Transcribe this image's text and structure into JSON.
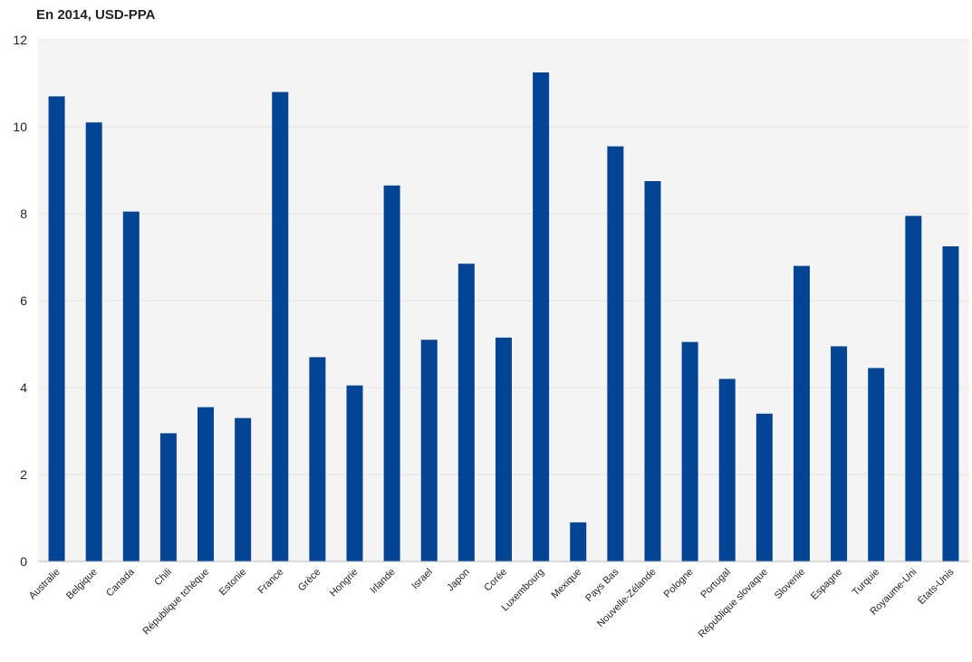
{
  "chart_data": {
    "type": "bar",
    "title": "En 2014, USD-PPA",
    "xlabel": "",
    "ylabel": "",
    "ylim": [
      0,
      12
    ],
    "yticks": [
      0,
      2,
      4,
      6,
      8,
      10,
      12
    ],
    "grid": true,
    "bar_color": "#034594",
    "plot_background": "#f4f4f4",
    "categories": [
      "Australie",
      "Belgique",
      "Canada",
      "Chili",
      "République tchèque",
      "Estonie",
      "France",
      "Grèce",
      "Hongrie",
      "Irlande",
      "Israel",
      "Japon",
      "Corée",
      "Luxembourg",
      "Mexique",
      "Pays Bas",
      "Nouvelle-Zélande",
      "Pologne",
      "Portugal",
      "République slovaque",
      "Slovenie",
      "Espagne",
      "Turquie",
      "Royaume-Uni",
      "États-Unis"
    ],
    "values": [
      10.7,
      10.1,
      8.05,
      2.95,
      3.55,
      3.3,
      10.8,
      4.7,
      4.05,
      8.65,
      5.1,
      6.85,
      5.15,
      11.25,
      0.9,
      9.55,
      8.75,
      5.05,
      4.2,
      3.4,
      6.8,
      4.95,
      4.45,
      7.95,
      7.25
    ]
  }
}
